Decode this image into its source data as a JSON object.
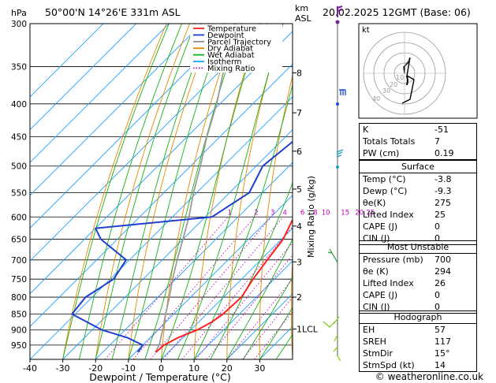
{
  "header": {
    "location": "50°00'N  14°26'E  331m  ASL",
    "hpa_label": "hPa",
    "km_label": "km",
    "asl_label": "ASL",
    "datetime": "20.02.2025  12GMT  (Base: 06)"
  },
  "legend": [
    {
      "label": "Temperature",
      "color": "#ff2020",
      "style": "solid"
    },
    {
      "label": "Dewpoint",
      "color": "#1e3fd0",
      "style": "solid"
    },
    {
      "label": "Parcel Trajectory",
      "color": "#8c8c8c",
      "style": "solid"
    },
    {
      "label": "Dry Adiabat",
      "color": "#e08a00",
      "style": "solid"
    },
    {
      "label": "Wet Adiabat",
      "color": "#16b016",
      "style": "solid"
    },
    {
      "label": "Isotherm",
      "color": "#1aa0ff",
      "style": "solid"
    },
    {
      "label": "Mixing Ratio",
      "color": "#c000c0",
      "style": "dotted"
    }
  ],
  "axes": {
    "xlabel": "Dewpoint / Temperature (°C)",
    "right_label": "Mixing Ratio (g/kg)"
  },
  "mixing_ratio_labels": [
    "1",
    "2",
    "3",
    "4",
    "6",
    "8",
    "10",
    "15",
    "20",
    "25"
  ],
  "lcl_label": "1LCL",
  "hodograph": {
    "kt_label": "kt",
    "ring_labels": [
      "10",
      "20",
      "30",
      "40"
    ]
  },
  "indices": {
    "rows": [
      {
        "label": "K",
        "value": "-51"
      },
      {
        "label": "Totals Totals",
        "value": "7"
      },
      {
        "label": "PW (cm)",
        "value": "0.19"
      }
    ]
  },
  "surface": {
    "title": "Surface",
    "rows": [
      {
        "label": "Temp (°C)",
        "value": "-3.8"
      },
      {
        "label": "Dewp (°C)",
        "value": "-9.3"
      },
      {
        "label": "θe(K)",
        "value": "275"
      },
      {
        "label": "Lifted Index",
        "value": "25"
      },
      {
        "label": "CAPE (J)",
        "value": "0"
      },
      {
        "label": "CIN (J)",
        "value": "0"
      }
    ]
  },
  "most_unstable": {
    "title": "Most Unstable",
    "rows": [
      {
        "label": "Pressure (mb)",
        "value": "700"
      },
      {
        "label": "θe (K)",
        "value": "294"
      },
      {
        "label": "Lifted Index",
        "value": "26"
      },
      {
        "label": "CAPE (J)",
        "value": "0"
      },
      {
        "label": "CIN (J)",
        "value": "0"
      }
    ]
  },
  "hodograph_params": {
    "title": "Hodograph",
    "rows": [
      {
        "label": "EH",
        "value": "57"
      },
      {
        "label": "SREH",
        "value": "117"
      },
      {
        "label": "StmDir",
        "value": "15°"
      },
      {
        "label": "StmSpd (kt)",
        "value": "14"
      }
    ]
  },
  "footer": "© weatheronline.co.uk",
  "colors": {
    "temperature": "#ff2020",
    "dewpoint": "#1e3fd0",
    "parcel": "#9a9a9a",
    "dry_adiabat": "#e08a00",
    "wet_adiabat": "#16b016",
    "isotherm": "#1aa0ff",
    "mixing_ratio": "#c000c0"
  },
  "chart_data": {
    "type": "line",
    "title": "",
    "xlabel": "Dewpoint / Temperature (°C)",
    "ylabel": "hPa",
    "xlim": [
      -40,
      40
    ],
    "ylim": [
      1000,
      300
    ],
    "x_ticks": [
      -40,
      -30,
      -20,
      -10,
      0,
      10,
      20,
      30
    ],
    "pressure_levels": [
      300,
      350,
      400,
      450,
      500,
      550,
      600,
      650,
      700,
      750,
      800,
      850,
      900,
      950
    ],
    "height_km_ticks": [
      {
        "km": 1,
        "label": "1LCL",
        "p": 897
      },
      {
        "km": 2,
        "label": "2",
        "p": 800
      },
      {
        "km": 3,
        "label": "3",
        "p": 705
      },
      {
        "km": 4,
        "label": "4",
        "p": 620
      },
      {
        "km": 5,
        "label": "5",
        "p": 543
      },
      {
        "km": 6,
        "label": "6",
        "p": 474
      },
      {
        "km": 7,
        "label": "7",
        "p": 413
      },
      {
        "km": 8,
        "label": "8",
        "p": 358
      }
    ],
    "series": [
      {
        "name": "Temperature",
        "points": [
          [
            975,
            -3.8
          ],
          [
            950,
            -3.5
          ],
          [
            925,
            -1.5
          ],
          [
            900,
            2
          ],
          [
            875,
            4
          ],
          [
            850,
            5
          ],
          [
            800,
            5.5
          ],
          [
            750,
            3.5
          ],
          [
            700,
            2
          ],
          [
            650,
            0.5
          ],
          [
            600,
            -3
          ],
          [
            550,
            -8
          ],
          [
            500,
            -14
          ],
          [
            450,
            -21
          ],
          [
            400,
            -28
          ],
          [
            350,
            -36
          ],
          [
            300,
            -45
          ]
        ]
      },
      {
        "name": "Dewpoint",
        "points": [
          [
            975,
            -9.3
          ],
          [
            950,
            -10
          ],
          [
            925,
            -17
          ],
          [
            900,
            -27
          ],
          [
            850,
            -41
          ],
          [
            800,
            -42
          ],
          [
            750,
            -39
          ],
          [
            700,
            -41
          ],
          [
            650,
            -55
          ],
          [
            625,
            -60
          ],
          [
            600,
            -28
          ],
          [
            550,
            -24
          ],
          [
            500,
            -28
          ],
          [
            450,
            -26
          ],
          [
            400,
            -34
          ],
          [
            350,
            -43
          ],
          [
            300,
            -52
          ]
        ]
      },
      {
        "name": "Parcel Trajectory",
        "points": [
          [
            975,
            -4
          ],
          [
            950,
            -5
          ],
          [
            900,
            -8.5
          ],
          [
            850,
            -12.5
          ],
          [
            800,
            -16.5
          ],
          [
            750,
            -21
          ],
          [
            700,
            -25.5
          ],
          [
            650,
            -30
          ],
          [
            600,
            -35
          ],
          [
            550,
            -41
          ],
          [
            500,
            -47
          ],
          [
            450,
            -54
          ],
          [
            400,
            -61
          ],
          [
            350,
            -70
          ],
          [
            300,
            -80
          ]
        ]
      }
    ]
  }
}
